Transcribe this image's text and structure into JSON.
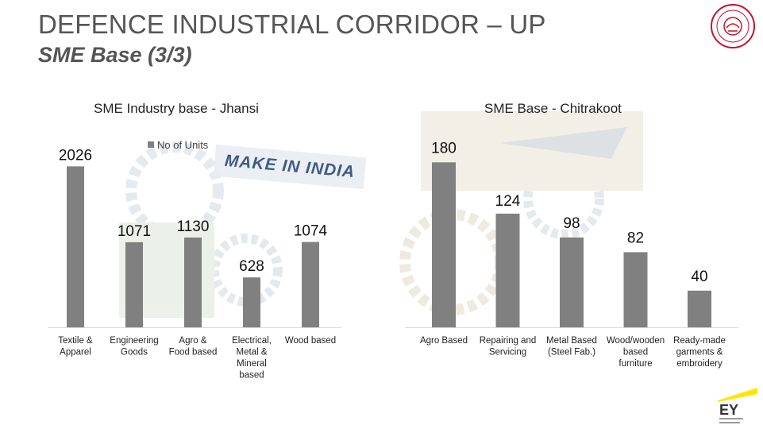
{
  "header": {
    "title": "DEFENCE INDUSTRIAL CORRIDOR – UP",
    "subtitle": "SME Base (3/3)"
  },
  "branding": {
    "seal_icon": "up-government-seal-icon",
    "logo_text": "EY",
    "logo_icon": "ey-logo-icon"
  },
  "background": {
    "banner_text": "MAKE IN INDIA"
  },
  "colors": {
    "bar": "#808080",
    "seal": "#c8102e",
    "ey_yellow": "#ffe600"
  },
  "chart_data": [
    {
      "type": "bar",
      "title": "SME Industry base - Jhansi",
      "legend": [
        "No of Units"
      ],
      "categories": [
        "Textile & Apparel",
        "Engineering Goods",
        "Agro & Food based",
        "Electrical, Metal & Mineral based",
        "Wood based"
      ],
      "values": [
        2026,
        1071,
        1130,
        628,
        1074
      ],
      "value_labels": [
        "2026",
        "1071",
        "1130",
        "628",
        "1074"
      ],
      "ylim": [
        0,
        2100
      ],
      "grid": false
    },
    {
      "type": "bar",
      "title": "SME Base - Chitrakoot",
      "categories": [
        "Agro Based",
        "Repairing and Servicing",
        "Metal Based (Steel Fab.)",
        "Wood/wooden based furniture",
        "Ready-made garments & embroidery"
      ],
      "values": [
        180,
        124,
        98,
        82,
        40
      ],
      "value_labels": [
        "180",
        "124",
        "98",
        "82",
        "40"
      ],
      "ylim": [
        0,
        195
      ],
      "grid": false
    }
  ]
}
